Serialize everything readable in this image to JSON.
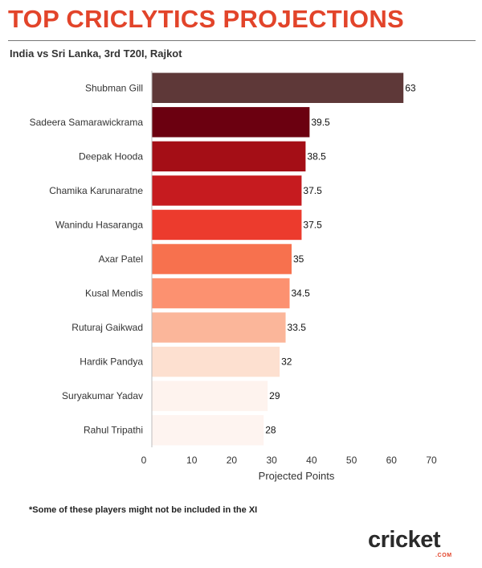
{
  "header": {
    "title": "TOP CRICLYTICS PROJECTIONS",
    "subtitle": "India vs Sri Lanka, 3rd T20I, Rajkot"
  },
  "chart_data": {
    "type": "bar",
    "orientation": "horizontal",
    "categories": [
      "Shubman Gill",
      "Sadeera Samarawickrama",
      "Deepak Hooda",
      "Chamika Karunaratne",
      "Wanindu Hasaranga",
      "Axar Patel",
      "Kusal Mendis",
      "Ruturaj Gaikwad",
      "Hardik Pandya",
      "Suryakumar Yadav",
      "Rahul Tripathi"
    ],
    "values": [
      63,
      39.5,
      38.5,
      37.5,
      37.5,
      35,
      34.5,
      33.5,
      32,
      29,
      28
    ],
    "value_labels": [
      "63",
      "39.5",
      "38.5",
      "37.5",
      "37.5",
      "35",
      "34.5",
      "33.5",
      "32",
      "29",
      "28"
    ],
    "colors": [
      "#5e3838",
      "#6b0010",
      "#a40e16",
      "#c61b1f",
      "#ec3b2d",
      "#f7714e",
      "#fc9170",
      "#fbb69a",
      "#fde0d0",
      "#fef3ee",
      "#fef4f0"
    ],
    "xlabel": "Projected Points",
    "ylabel": "",
    "xlim": [
      0,
      70
    ],
    "xticks": [
      0,
      10,
      20,
      30,
      40,
      50,
      60,
      70
    ],
    "grid": false,
    "legend": "none"
  },
  "footnote": "*Some of these players might not be included in the XI",
  "logo": {
    "text": "cricket",
    "sub": ".COM",
    "accent": "#e2442a"
  }
}
